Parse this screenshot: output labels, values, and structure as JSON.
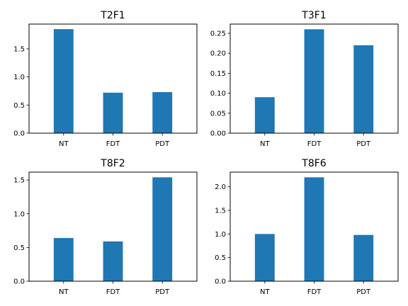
{
  "chart_data": [
    {
      "type": "bar",
      "title": "T2F1",
      "categories": [
        "NT",
        "FDT",
        "PDT"
      ],
      "values": [
        1.85,
        0.72,
        0.73
      ],
      "ylim": [
        0,
        1.94
      ],
      "yticks": [
        "0.0",
        "0.5",
        "1.0",
        "1.5"
      ],
      "ytick_values": [
        0.0,
        0.5,
        1.0,
        1.5
      ],
      "grid": false,
      "color": "#1f77b4"
    },
    {
      "type": "bar",
      "title": "T3F1",
      "categories": [
        "NT",
        "FDT",
        "PDT"
      ],
      "values": [
        0.09,
        0.26,
        0.22
      ],
      "ylim": [
        0,
        0.273
      ],
      "yticks": [
        "0.00",
        "0.05",
        "0.10",
        "0.15",
        "0.20",
        "0.25"
      ],
      "ytick_values": [
        0.0,
        0.05,
        0.1,
        0.15,
        0.2,
        0.25
      ],
      "grid": false,
      "color": "#1f77b4"
    },
    {
      "type": "bar",
      "title": "T8F2",
      "categories": [
        "NT",
        "FDT",
        "PDT"
      ],
      "values": [
        0.64,
        0.59,
        1.54
      ],
      "ylim": [
        0,
        1.617
      ],
      "yticks": [
        "0.0",
        "0.5",
        "1.0",
        "1.5"
      ],
      "ytick_values": [
        0.0,
        0.5,
        1.0,
        1.5
      ],
      "grid": false,
      "color": "#1f77b4"
    },
    {
      "type": "bar",
      "title": "T8F6",
      "categories": [
        "NT",
        "FDT",
        "PDT"
      ],
      "values": [
        1.0,
        2.2,
        0.98
      ],
      "ylim": [
        0,
        2.31
      ],
      "yticks": [
        "0.0",
        "0.5",
        "1.0",
        "1.5",
        "2.0"
      ],
      "ytick_values": [
        0.0,
        0.5,
        1.0,
        1.5,
        2.0
      ],
      "grid": false,
      "color": "#1f77b4"
    }
  ]
}
